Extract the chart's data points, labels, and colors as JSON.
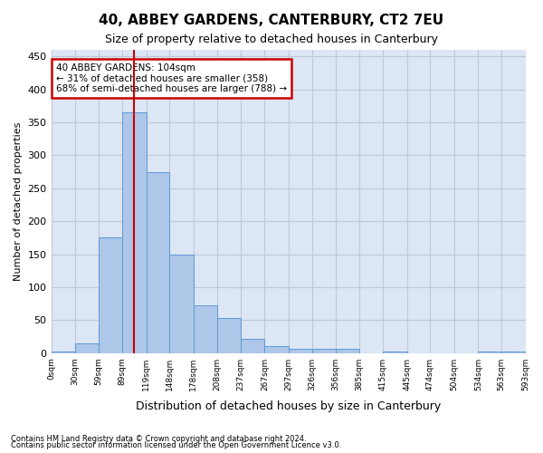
{
  "title": "40, ABBEY GARDENS, CANTERBURY, CT2 7EU",
  "subtitle": "Size of property relative to detached houses in Canterbury",
  "xlabel": "Distribution of detached houses by size in Canterbury",
  "ylabel": "Number of detached properties",
  "footnote1": "Contains HM Land Registry data © Crown copyright and database right 2024.",
  "footnote2": "Contains public sector information licensed under the Open Government Licence v3.0.",
  "annotation_line1": "40 ABBEY GARDENS: 104sqm",
  "annotation_line2": "← 31% of detached houses are smaller (358)",
  "annotation_line3": "68% of semi-detached houses are larger (788) →",
  "property_size": 104,
  "bin_edges": [
    0,
    30,
    59,
    89,
    119,
    148,
    178,
    208,
    237,
    267,
    297,
    326,
    356,
    385,
    415,
    445,
    474,
    504,
    534,
    563,
    593
  ],
  "bar_values": [
    2,
    15,
    175,
    365,
    275,
    150,
    72,
    53,
    22,
    10,
    7,
    7,
    7,
    0,
    2,
    0,
    0,
    0,
    2,
    2
  ],
  "bar_color": "#aec6e8",
  "bar_edge_color": "#5b9bd5",
  "vline_color": "#cc0000",
  "vline_x": 104,
  "annotation_box_edge": "#cc0000",
  "ylim": [
    0,
    460
  ],
  "yticks": [
    0,
    50,
    100,
    150,
    200,
    250,
    300,
    350,
    400,
    450
  ],
  "grid_color": "#c0c8d8",
  "background_color": "#dce6f5"
}
